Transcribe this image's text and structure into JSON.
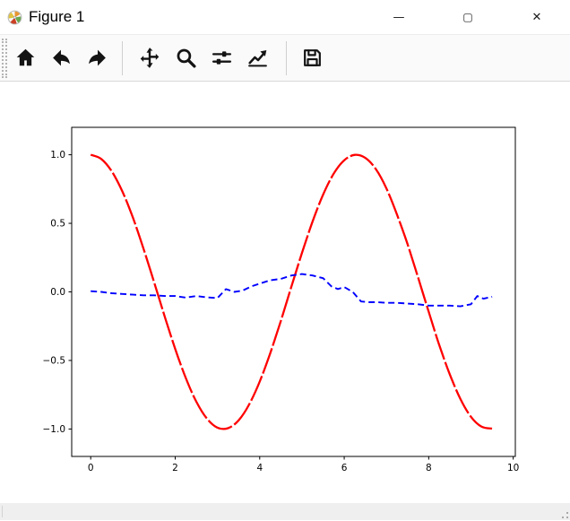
{
  "window": {
    "title": "Figure 1",
    "controls": {
      "minimize": "—",
      "maximize": "▢",
      "close": "✕"
    }
  },
  "toolbar": {
    "buttons": [
      {
        "name": "home",
        "icon": "home-icon"
      },
      {
        "name": "back",
        "icon": "back-arrow-icon"
      },
      {
        "name": "forward",
        "icon": "forward-arrow-icon"
      },
      {
        "name": "pan",
        "icon": "pan-arrows-icon"
      },
      {
        "name": "zoom-to-rect",
        "icon": "magnifier-icon"
      },
      {
        "name": "configure-subplots",
        "icon": "sliders-icon"
      },
      {
        "name": "edit-parameters",
        "icon": "chart-arrow-icon"
      },
      {
        "name": "save",
        "icon": "floppy-disk-icon"
      }
    ]
  },
  "status_bar": {
    "text": ""
  },
  "chart_data": {
    "type": "line",
    "title": "",
    "xlabel": "",
    "ylabel": "",
    "xlim": [
      -0.45,
      10.05
    ],
    "ylim": [
      -1.2,
      1.2
    ],
    "grid": false,
    "legend": "none",
    "x_ticks": {
      "values": [
        0,
        2,
        4,
        6,
        8,
        10
      ],
      "labels": [
        "0",
        "2",
        "4",
        "6",
        "8",
        "10"
      ]
    },
    "y_ticks": {
      "values": [
        -1.0,
        -0.5,
        0.0,
        0.5,
        1.0
      ],
      "labels": [
        "−1.0",
        "−0.5",
        "0.0",
        "0.5",
        "1.0"
      ]
    },
    "series": [
      {
        "name": "red-cosine-line",
        "color": "#ff0000",
        "linestyle": "long-dash",
        "linewidth": 2.3,
        "smooth": true,
        "x": [
          0,
          0.25,
          0.5,
          0.75,
          1,
          1.25,
          1.5,
          1.75,
          2,
          2.25,
          2.5,
          2.75,
          3,
          3.25,
          3.5,
          3.75,
          4,
          4.25,
          4.5,
          4.75,
          5,
          5.25,
          5.5,
          5.75,
          6,
          6.25,
          6.5,
          6.75,
          7,
          7.25,
          7.5,
          7.75,
          8,
          8.25,
          8.5,
          8.75,
          9,
          9.25,
          9.5
        ],
        "y": [
          1.0,
          0.969,
          0.878,
          0.732,
          0.54,
          0.315,
          0.071,
          -0.178,
          -0.416,
          -0.628,
          -0.801,
          -0.924,
          -0.99,
          -0.994,
          -0.937,
          -0.821,
          -0.654,
          -0.446,
          -0.211,
          0.038,
          0.284,
          0.512,
          0.709,
          0.862,
          0.96,
          0.999,
          0.977,
          0.895,
          0.754,
          0.563,
          0.347,
          0.103,
          -0.146,
          -0.388,
          -0.602,
          -0.781,
          -0.911,
          -0.983,
          -0.997
        ]
      },
      {
        "name": "blue-dashed-noise-line",
        "color": "#0000ff",
        "linestyle": "dashed",
        "linewidth": 1.9,
        "smooth": false,
        "x": [
          0,
          0.25,
          0.5,
          0.75,
          1,
          1.25,
          1.5,
          1.75,
          2,
          2.25,
          2.5,
          2.75,
          3,
          3.2,
          3.4,
          3.6,
          3.8,
          4,
          4.25,
          4.5,
          4.75,
          5,
          5.25,
          5.5,
          5.7,
          5.85,
          6,
          6.2,
          6.4,
          6.6,
          6.8,
          7,
          7.25,
          7.5,
          7.75,
          8,
          8.25,
          8.5,
          8.75,
          9,
          9.15,
          9.3,
          9.5
        ],
        "y": [
          0.005,
          0.0,
          -0.01,
          -0.015,
          -0.02,
          -0.025,
          -0.025,
          -0.03,
          -0.03,
          -0.042,
          -0.03,
          -0.04,
          -0.045,
          0.02,
          0.0,
          0.01,
          0.04,
          0.06,
          0.085,
          0.095,
          0.12,
          0.13,
          0.12,
          0.1,
          0.04,
          0.02,
          0.035,
          0.0,
          -0.07,
          -0.075,
          -0.075,
          -0.08,
          -0.08,
          -0.085,
          -0.09,
          -0.1,
          -0.1,
          -0.1,
          -0.105,
          -0.09,
          -0.03,
          -0.05,
          -0.035
        ]
      }
    ]
  }
}
